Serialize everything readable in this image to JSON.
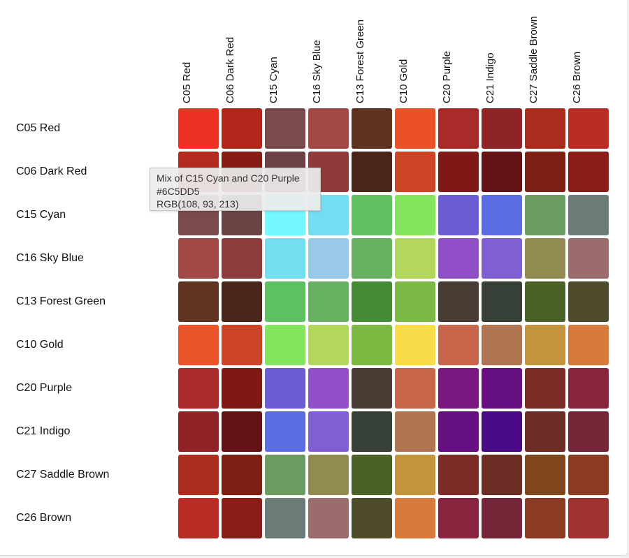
{
  "columns": [
    "C05 Red",
    "C06 Dark Red",
    "C15 Cyan",
    "C16 Sky Blue",
    "C13 Forest Green",
    "C10 Gold",
    "C20 Purple",
    "C21 Indigo",
    "C27 Saddle Brown",
    "C26 Brown"
  ],
  "rows": [
    {
      "label": "C05 Red",
      "colors": [
        "#ED3124",
        "#B0261B",
        "#7B4A4B",
        "#A34845",
        "#5F311F",
        "#EA5127",
        "#A92A2A",
        "#8F2426",
        "#AA2C1C",
        "#BB2C25"
      ]
    },
    {
      "label": "C06 Dark Red",
      "colors": [
        "#B12B1E",
        "#871C14",
        "#6C4146",
        "#8F3A3B",
        "#4A251A",
        "#CC4527",
        "#7F1915",
        "#621214",
        "#7E1F16",
        "#8A1C17"
      ]
    },
    {
      "label": "C15 Cyan",
      "colors": [
        "#7A4B4B",
        "#6A4344",
        "#75F7FF",
        "#74DDF2",
        "#5EC061",
        "#86E55E",
        "#6C5DD5",
        "#5A6EE1",
        "#6A9B60",
        "#6B7B77"
      ]
    },
    {
      "label": "C16 Sky Blue",
      "colors": [
        "#A24845",
        "#8E3D3C",
        "#74DDF0",
        "#99C9E8",
        "#68B160",
        "#B3D75C",
        "#914FC8",
        "#7F5FD2",
        "#918B51",
        "#9A6C6B"
      ]
    },
    {
      "label": "C13 Forest Green",
      "colors": [
        "#5F3222",
        "#4A2519",
        "#5DC162",
        "#68B160",
        "#448B35",
        "#7CB944",
        "#483C35",
        "#374036",
        "#4A6228",
        "#4E4A2C"
      ]
    },
    {
      "label": "C10 Gold",
      "colors": [
        "#EA5228",
        "#CC4527",
        "#86E55F",
        "#B2D75C",
        "#7CB943",
        "#F8DC4A",
        "#C8664B",
        "#B07450",
        "#C4943C",
        "#D57A3B"
      ]
    },
    {
      "label": "C20 Purple",
      "colors": [
        "#A92A2A",
        "#7F1915",
        "#6C5DD3",
        "#914FC8",
        "#493C35",
        "#C8664B",
        "#781880",
        "#650F80",
        "#7D2B27",
        "#8A2540"
      ]
    },
    {
      "label": "C21 Indigo",
      "colors": [
        "#8F2326",
        "#621214",
        "#5A6EE1",
        "#805FD2",
        "#374036",
        "#B07450",
        "#650F80",
        "#490B85",
        "#6C2D25",
        "#742538"
      ]
    },
    {
      "label": "C27 Saddle Brown",
      "colors": [
        "#AA2C1C",
        "#7E1F16",
        "#6A9B60",
        "#918B51",
        "#4A6228",
        "#C4943C",
        "#7D2B27",
        "#6C2D25",
        "#7F461C",
        "#8B3A23"
      ]
    },
    {
      "label": "C26 Brown",
      "colors": [
        "#BB2C25",
        "#8A1C17",
        "#6B7B77",
        "#9A6C6B",
        "#4E4A2C",
        "#D57A3B",
        "#8A2540",
        "#742538",
        "#8B3A23",
        "#9E322E"
      ]
    }
  ],
  "tooltip": {
    "title": "Mix of C15 Cyan and C20 Purple",
    "hex": "#6C5DD5",
    "rgb": "RGB(108, 93, 213)"
  }
}
